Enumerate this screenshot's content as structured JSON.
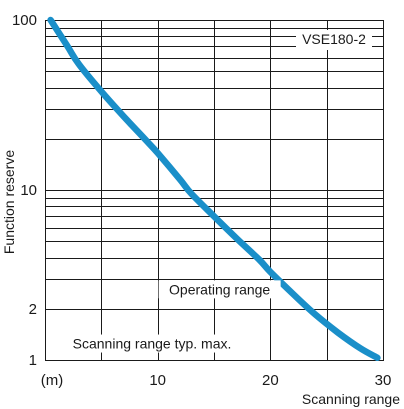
{
  "chart_data": {
    "type": "line",
    "title": "",
    "xlabel": "Scanning range",
    "ylabel": "Function reserve",
    "x_unit_label": "(m)",
    "xlim": [
      0,
      30
    ],
    "ylim": [
      1,
      100
    ],
    "y_scale": "log",
    "x_ticks": [
      "10",
      "20",
      "30"
    ],
    "y_ticks": [
      "100",
      "10",
      "2",
      "1"
    ],
    "grid": true,
    "series": [
      {
        "name": "VSE180-2",
        "color": "#1a8fc9",
        "points": [
          [
            0.5,
            100
          ],
          [
            2,
            70
          ],
          [
            3,
            55
          ],
          [
            5,
            38
          ],
          [
            7,
            27
          ],
          [
            9,
            19.5
          ],
          [
            10,
            16.5
          ],
          [
            12,
            11.5
          ],
          [
            13,
            9.5
          ],
          [
            15,
            7
          ],
          [
            17,
            5.2
          ],
          [
            19,
            3.9
          ],
          [
            20,
            3.3
          ],
          [
            22,
            2.45
          ],
          [
            24,
            1.85
          ],
          [
            26,
            1.45
          ],
          [
            28,
            1.17
          ],
          [
            29.5,
            1.03
          ]
        ]
      }
    ],
    "legend": {
      "label": "VSE180-2",
      "placement": "top-right"
    },
    "annotations": [
      {
        "text": "Operating range",
        "x": 15.5,
        "y": 2.5
      },
      {
        "text": "Scanning range typ. max.",
        "x": 9.5,
        "y": 1.2
      }
    ]
  }
}
